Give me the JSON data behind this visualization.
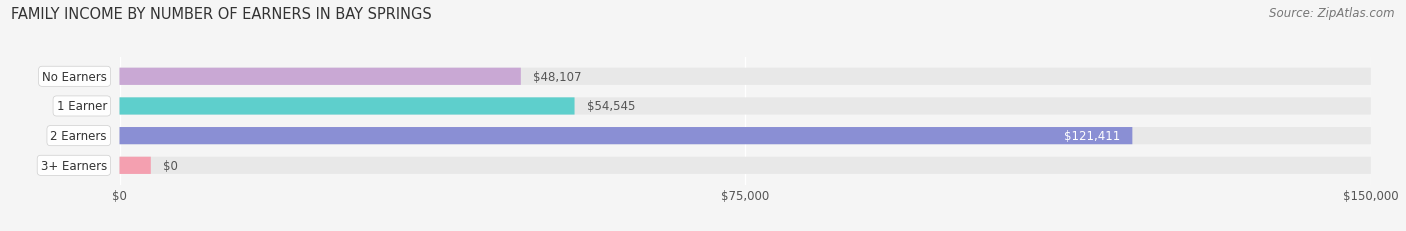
{
  "title": "FAMILY INCOME BY NUMBER OF EARNERS IN BAY SPRINGS",
  "source": "Source: ZipAtlas.com",
  "categories": [
    "No Earners",
    "1 Earner",
    "2 Earners",
    "3+ Earners"
  ],
  "values": [
    48107,
    54545,
    121411,
    0
  ],
  "bar_colors": [
    "#c9a8d4",
    "#5ecfcc",
    "#8a8fd4",
    "#f4a0b0"
  ],
  "label_colors": [
    "#555555",
    "#555555",
    "#ffffff",
    "#555555"
  ],
  "bar_bg_color": "#e8e8e8",
  "xlim": [
    0,
    150000
  ],
  "xticks": [
    0,
    75000,
    150000
  ],
  "xtick_labels": [
    "$0",
    "$75,000",
    "$150,000"
  ],
  "title_fontsize": 10.5,
  "source_fontsize": 8.5,
  "bar_height": 0.58,
  "bar_label_fontsize": 8.5,
  "ytick_fontsize": 8.5,
  "xtick_fontsize": 8.5,
  "fig_bg_color": "#f5f5f5"
}
